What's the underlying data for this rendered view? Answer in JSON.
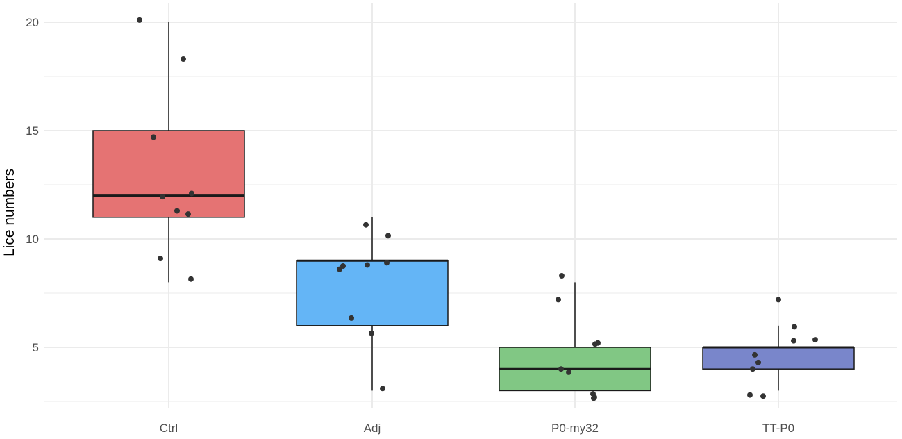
{
  "chart_data": {
    "type": "box",
    "ylabel": "Lice numbers",
    "xlabel": "",
    "ylim": [
      2.2,
      21
    ],
    "yticks": [
      5,
      10,
      15,
      20
    ],
    "ytick_labels": [
      "5",
      "10",
      "15",
      "20"
    ],
    "grid": true,
    "categories": [
      "Ctrl",
      "Adj",
      "P0-my32",
      "TT-P0"
    ],
    "boxes": [
      {
        "name": "Ctrl",
        "color": "#e57373",
        "whisker_low": 8,
        "q1": 11,
        "median": 12,
        "q3": 15,
        "whisker_high": 20,
        "points": [
          20.1,
          18.3,
          14.7,
          12.1,
          11.95,
          11.3,
          11.15,
          9.1,
          8.15
        ]
      },
      {
        "name": "Adj",
        "color": "#64b5f6",
        "whisker_low": 3,
        "q1": 6,
        "median": 9,
        "q3": 9,
        "whisker_high": 11,
        "points": [
          10.65,
          10.15,
          8.9,
          8.8,
          8.75,
          8.6,
          6.35,
          5.65,
          3.1
        ]
      },
      {
        "name": "P0-my32",
        "color": "#81c784",
        "whisker_low": 3,
        "q1": 3,
        "median": 4,
        "q3": 5,
        "whisker_high": 8,
        "points": [
          8.3,
          7.2,
          5.2,
          5.15,
          4.0,
          3.85,
          2.85,
          2.7,
          2.65
        ]
      },
      {
        "name": "TT-P0",
        "color": "#7986cb",
        "whisker_low": 3,
        "q1": 4,
        "median": 5,
        "q3": 5,
        "whisker_high": 6,
        "points": [
          7.2,
          5.95,
          5.35,
          5.3,
          4.65,
          4.3,
          4.0,
          2.8,
          2.75
        ]
      }
    ]
  },
  "colors": {
    "grid": "#ebebeb",
    "point": "#333333",
    "box_border": "#1a1a1a"
  }
}
